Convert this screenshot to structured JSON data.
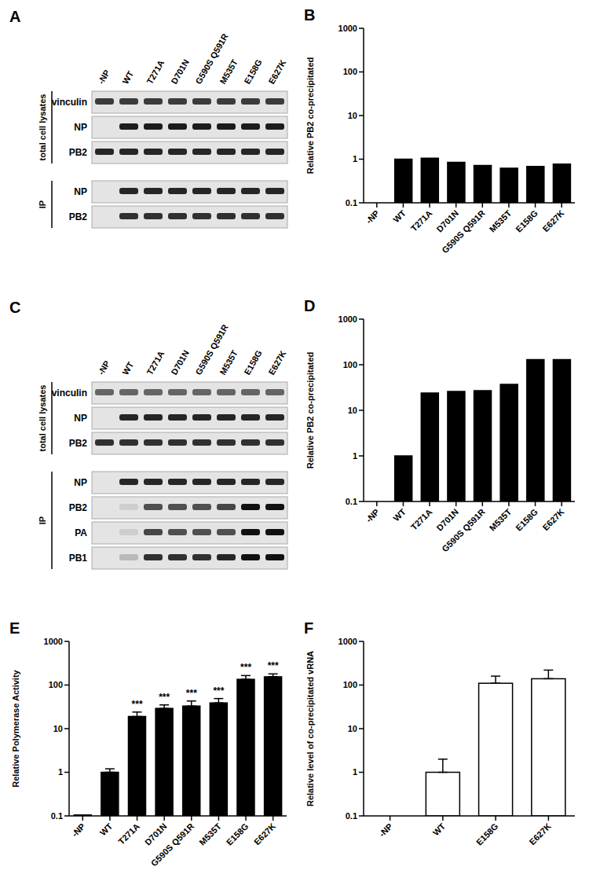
{
  "chart_data": [
    {
      "type": "bar",
      "title": "B",
      "ylabel": "Relative PB2 co-precipitated",
      "categories": [
        "-NP",
        "WT",
        "T271A",
        "D701N",
        "G590S Q591R",
        "M535T",
        "E158G",
        "E627K"
      ],
      "values": [
        null,
        1,
        1.05,
        0.85,
        0.72,
        0.62,
        0.68,
        0.77
      ],
      "color": "#000000",
      "log": "y",
      "ylim": [
        0.1,
        1000
      ],
      "yticks": [
        0.1,
        1,
        10,
        100,
        1000
      ]
    },
    {
      "type": "bar",
      "title": "D",
      "ylabel": "Relative PB2 co-precipitated",
      "categories": [
        "-NP",
        "WT",
        "T271A",
        "D701N",
        "G590S Q591R",
        "M535T",
        "E158G",
        "E627K"
      ],
      "values": [
        null,
        1,
        24,
        26,
        27,
        37,
        130,
        130
      ],
      "color": "#000000",
      "log": "y",
      "ylim": [
        0.1,
        1000
      ],
      "yticks": [
        0.1,
        1,
        10,
        100,
        1000
      ]
    },
    {
      "type": "bar",
      "title": "E",
      "ylabel": "Relative Polymerase Activity",
      "categories": [
        "-NP",
        "WT",
        "T271A",
        "D701N",
        "G590S Q591R",
        "M535T",
        "E158G",
        "E627K"
      ],
      "values": [
        0.105,
        1,
        19,
        29,
        33,
        39,
        135,
        155
      ],
      "errors": [
        null,
        0.2,
        5,
        6,
        10,
        10,
        30,
        25
      ],
      "color": "#000000",
      "log": "y",
      "ylim": [
        0.1,
        1000
      ],
      "yticks": [
        0.1,
        1,
        10,
        100,
        1000
      ],
      "annotations": [
        {
          "category": "T271A",
          "text": "***"
        },
        {
          "category": "D701N",
          "text": "***"
        },
        {
          "category": "G590S Q591R",
          "text": "***"
        },
        {
          "category": "M535T",
          "text": "***"
        },
        {
          "category": "E158G",
          "text": "***"
        },
        {
          "category": "E627K",
          "text": "***"
        }
      ]
    },
    {
      "type": "bar",
      "title": "F",
      "ylabel": "Relative level of co-precipitated vRNA",
      "categories": [
        "-NP",
        "WT",
        "E158G",
        "E627K"
      ],
      "values": [
        null,
        1,
        110,
        140
      ],
      "errors": [
        null,
        1,
        50,
        80
      ],
      "color": "#ffffff",
      "log": "y",
      "ylim": [
        0.1,
        1000
      ],
      "yticks": [
        0.1,
        1,
        10,
        100,
        1000
      ]
    }
  ],
  "blots": [
    {
      "title": "A",
      "lanes": [
        "-NP",
        "WT",
        "T271A",
        "D701N",
        "G590S Q591R",
        "M535T",
        "E158G",
        "E627K"
      ],
      "groups": [
        {
          "label": "total cell lysates",
          "rows": [
            "vinculin",
            "NP",
            "PB2"
          ]
        },
        {
          "label": "IP",
          "rows": [
            "NP",
            "PB2"
          ]
        }
      ]
    },
    {
      "title": "C",
      "lanes": [
        "-NP",
        "WT",
        "T271A",
        "D701N",
        "G590S Q591R",
        "M535T",
        "E158G",
        "E627K"
      ],
      "groups": [
        {
          "label": "total cell lysates",
          "rows": [
            "vinculin",
            "NP",
            "PB2"
          ]
        },
        {
          "label": "IP",
          "rows": [
            "NP",
            "PB2",
            "PA",
            "PB1"
          ]
        }
      ]
    }
  ]
}
